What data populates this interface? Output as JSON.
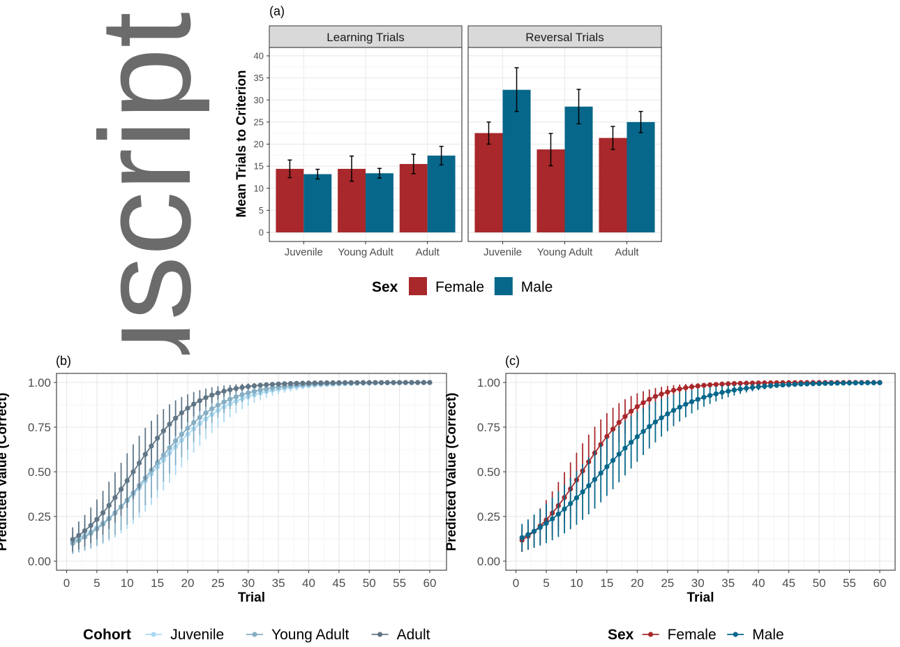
{
  "watermark": {
    "text": "uscript"
  },
  "chart_data": [
    {
      "id": "a",
      "type": "bar",
      "panel_label": "(a)",
      "ylabel": "Mean Trials to Criterion",
      "ylim": [
        0,
        40
      ],
      "yticks": [
        0,
        5,
        10,
        15,
        20,
        25,
        30,
        35,
        40
      ],
      "grid": true,
      "categories": [
        "Juvenile",
        "Young Adult",
        "Adult"
      ],
      "legend": {
        "title": "Sex",
        "position": "bottom",
        "entries": [
          {
            "name": "Female",
            "color": "#a8282b"
          },
          {
            "name": "Male",
            "color": "#06678a"
          }
        ]
      },
      "facets": [
        {
          "title": "Learning Trials",
          "series": [
            {
              "name": "Female",
              "color": "#a8282b",
              "values": [
                14.4,
                14.4,
                15.5
              ],
              "err_low": [
                12.4,
                11.6,
                13.3
              ],
              "err_high": [
                16.4,
                17.3,
                17.7
              ]
            },
            {
              "name": "Male",
              "color": "#06678a",
              "values": [
                13.2,
                13.4,
                17.4
              ],
              "err_low": [
                12.1,
                12.3,
                15.3
              ],
              "err_high": [
                14.3,
                14.5,
                19.5
              ]
            }
          ]
        },
        {
          "title": "Reversal Trials",
          "series": [
            {
              "name": "Female",
              "color": "#a8282b",
              "values": [
                22.5,
                18.8,
                21.4
              ],
              "err_low": [
                20.0,
                15.1,
                18.8
              ],
              "err_high": [
                25.0,
                22.4,
                24.0
              ]
            },
            {
              "name": "Male",
              "color": "#06678a",
              "values": [
                32.3,
                28.5,
                25.0
              ],
              "err_low": [
                27.4,
                24.6,
                22.6
              ],
              "err_high": [
                37.3,
                32.4,
                27.4
              ]
            }
          ]
        }
      ]
    },
    {
      "id": "b",
      "type": "line",
      "panel_label": "(b)",
      "xlabel": "Trial",
      "ylabel": "Predicted Value (Correct)",
      "xlim": [
        1,
        60
      ],
      "ylim": [
        0,
        1
      ],
      "xticks": [
        0,
        5,
        10,
        15,
        20,
        25,
        30,
        35,
        40,
        45,
        50,
        55,
        60
      ],
      "yticks": [
        "0.00",
        "0.25",
        "0.50",
        "0.75",
        "1.00"
      ],
      "grid": true,
      "legend": {
        "title": "Cohort",
        "position": "bottom"
      },
      "series": [
        {
          "name": "Juvenile",
          "color": "#a9d9f2",
          "midpoint": 14.3,
          "slope": 0.157,
          "ci_width": 0.17
        },
        {
          "name": "Young Adult",
          "color": "#86aec3",
          "midpoint": 13.8,
          "slope": 0.172,
          "ci_width": 0.15
        },
        {
          "name": "Adult",
          "color": "#607585",
          "midpoint": 11.0,
          "slope": 0.198,
          "ci_width": 0.15
        }
      ]
    },
    {
      "id": "c",
      "type": "line",
      "panel_label": "(c)",
      "xlabel": "Trial",
      "ylabel": "Predicted Value (Correct)",
      "xlim": [
        1,
        60
      ],
      "ylim": [
        0,
        1
      ],
      "xticks": [
        0,
        5,
        10,
        15,
        20,
        25,
        30,
        35,
        40,
        45,
        50,
        55,
        60
      ],
      "yticks": [
        "0.00",
        "0.25",
        "0.50",
        "0.75",
        "1.00"
      ],
      "grid": true,
      "legend": {
        "title": "Sex",
        "position": "bottom"
      },
      "series": [
        {
          "name": "Female",
          "color": "#a8282b",
          "midpoint": 10.9,
          "slope": 0.204,
          "ci_width": 0.15
        },
        {
          "name": "Male",
          "color": "#06678a",
          "midpoint": 14.2,
          "slope": 0.143,
          "ci_width": 0.16
        }
      ]
    }
  ]
}
